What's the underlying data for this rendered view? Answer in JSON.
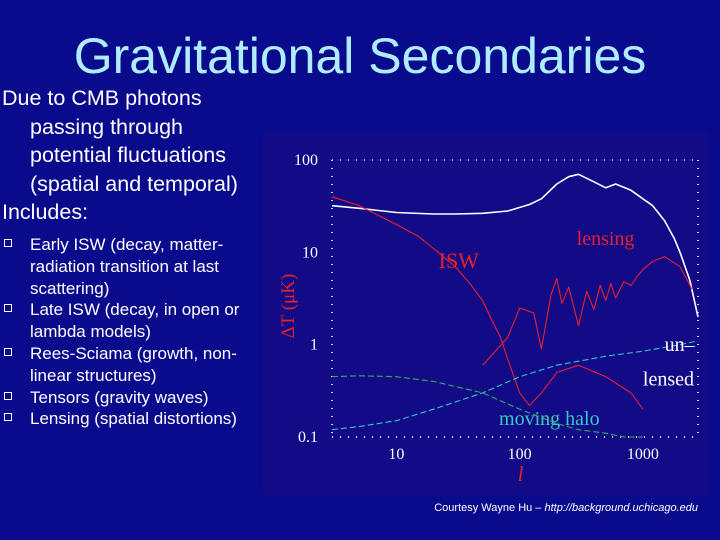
{
  "slide": {
    "title": "Gravitational Secondaries",
    "intro_lines": [
      "Due to CMB photons",
      "passing through",
      "potential fluctuations",
      "(spatial and temporal)"
    ],
    "includes_label": "Includes:",
    "bullets": [
      {
        "lines": [
          "Early ISW (decay, matter-",
          "radiation transition at last",
          "scattering)"
        ]
      },
      {
        "lines": [
          "Late ISW (decay, in open or",
          "lambda models)"
        ]
      },
      {
        "lines": [
          "Rees-Sciama (growth, non-",
          "linear structures)"
        ]
      },
      {
        "lines": [
          "Tensors (gravity waves)"
        ]
      },
      {
        "lines": [
          "Lensing (spatial distortions)"
        ]
      }
    ],
    "credit_prefix": "Courtesy Wayne Hu – ",
    "credit_url": "http://background.uchicago.edu"
  },
  "colors": {
    "background": "#0a0a8c",
    "title": "#b0ecff",
    "plot_bg": "#130a88",
    "unlensed": "#ffffff",
    "red": "#e8202a",
    "cyan": "#38c8c0",
    "green": "#30b050"
  },
  "chart_data": {
    "type": "line",
    "xscale": "log",
    "yscale": "log",
    "xlim": [
      3,
      2800
    ],
    "ylim": [
      0.1,
      100
    ],
    "xlabel": "l",
    "ylabel": "ΔT (μK)",
    "xticks": [
      10,
      100,
      1000
    ],
    "yticks": [
      0.1,
      1,
      10,
      100
    ],
    "ytick_labels": [
      "0.1",
      "1",
      "10",
      "100"
    ],
    "annotations": [
      {
        "text": "ISW",
        "color": "red"
      },
      {
        "text": "lensing",
        "color": "red"
      },
      {
        "text": "un–",
        "color": "white"
      },
      {
        "text": "lensed",
        "color": "white"
      },
      {
        "text": "moving halo",
        "color": "cyan"
      }
    ],
    "series": [
      {
        "name": "unlensed",
        "color": "white",
        "x": [
          3,
          5,
          10,
          20,
          30,
          50,
          80,
          120,
          150,
          200,
          250,
          300,
          400,
          500,
          600,
          800,
          1000,
          1200,
          1500,
          1800,
          2000,
          2400,
          2800
        ],
        "y": [
          32,
          30,
          27,
          26,
          26,
          26.5,
          28,
          33,
          38,
          55,
          66,
          70,
          58,
          50,
          55,
          47,
          38,
          32,
          22,
          14,
          10,
          5,
          2
        ]
      },
      {
        "name": "lensing",
        "color": "red",
        "x": [
          50,
          80,
          100,
          130,
          150,
          180,
          200,
          220,
          250,
          300,
          350,
          400,
          450,
          500,
          550,
          600,
          700,
          800,
          900,
          1000,
          1200,
          1500,
          2000,
          2500
        ],
        "y": [
          0.6,
          1.2,
          2.5,
          2.2,
          0.9,
          3.5,
          5.2,
          2.8,
          4.2,
          1.6,
          3.8,
          2.4,
          4.4,
          3,
          4.6,
          3.2,
          4.8,
          4.4,
          5.5,
          6.5,
          8,
          9,
          7,
          4
        ]
      },
      {
        "name": "ISW",
        "color": "red",
        "x": [
          3,
          5,
          10,
          15,
          20,
          30,
          40,
          50,
          60,
          70,
          80,
          90,
          100,
          120,
          150,
          200,
          300,
          500,
          800,
          1000
        ],
        "y": [
          40,
          32,
          20,
          15,
          11,
          7,
          4.5,
          3,
          1.8,
          1.2,
          0.7,
          0.45,
          0.3,
          0.22,
          0.3,
          0.5,
          0.6,
          0.45,
          0.3,
          0.2
        ]
      },
      {
        "name": "moving halo",
        "color": "cyan",
        "x": [
          3,
          5,
          10,
          20,
          50,
          100,
          200,
          500,
          1000,
          2000,
          2800
        ],
        "y": [
          0.12,
          0.13,
          0.15,
          0.2,
          0.3,
          0.45,
          0.6,
          0.75,
          0.85,
          1.0,
          1.1
        ]
      },
      {
        "name": "green",
        "color": "green",
        "x": [
          3,
          5,
          10,
          20,
          50,
          100,
          200,
          300,
          500,
          700,
          1000
        ],
        "y": [
          0.45,
          0.46,
          0.45,
          0.4,
          0.3,
          0.2,
          0.14,
          0.12,
          0.11,
          0.1,
          0.1
        ]
      }
    ]
  }
}
